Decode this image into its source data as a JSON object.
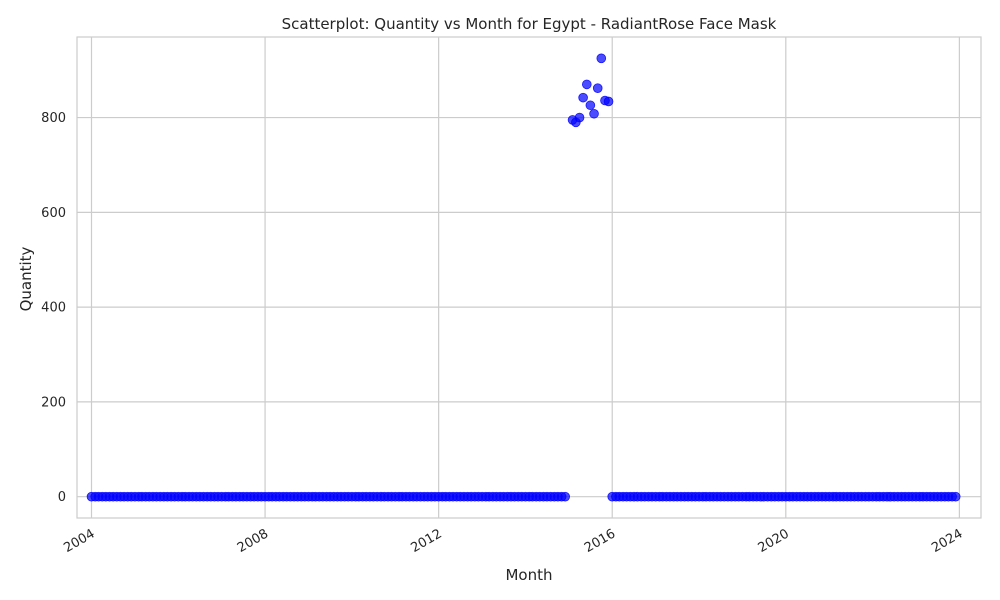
{
  "chart_data": {
    "type": "scatter",
    "title": "Scatterplot: Quantity vs Month for Egypt - RadiantRose Face Mask",
    "xlabel": "Month",
    "ylabel": "Quantity",
    "x_axis_type": "date",
    "xlim": [
      "2003-09-01",
      "2024-07-01"
    ],
    "ylim": [
      -45,
      970
    ],
    "xticks": [
      "2004",
      "2008",
      "2012",
      "2016",
      "2020",
      "2024"
    ],
    "yticks": [
      0,
      200,
      400,
      600,
      800
    ],
    "x_tick_rotation": "rotated",
    "grid": true,
    "legend": "none",
    "marker_color": "#0000ff",
    "series": [
      {
        "x_start": "2004-01",
        "x_end": "2023-12",
        "x_step": "monthly",
        "default_value": 0,
        "points": [
          {
            "x": "2015-02",
            "y": 795
          },
          {
            "x": "2015-03",
            "y": 790
          },
          {
            "x": "2015-04",
            "y": 800
          },
          {
            "x": "2015-05",
            "y": 842
          },
          {
            "x": "2015-06",
            "y": 870
          },
          {
            "x": "2015-07",
            "y": 826
          },
          {
            "x": "2015-08",
            "y": 808
          },
          {
            "x": "2015-09",
            "y": 862
          },
          {
            "x": "2015-10",
            "y": 925
          },
          {
            "x": "2015-11",
            "y": 836
          },
          {
            "x": "2015-12",
            "y": 834
          }
        ],
        "missing": [
          "2015-01"
        ]
      }
    ]
  }
}
